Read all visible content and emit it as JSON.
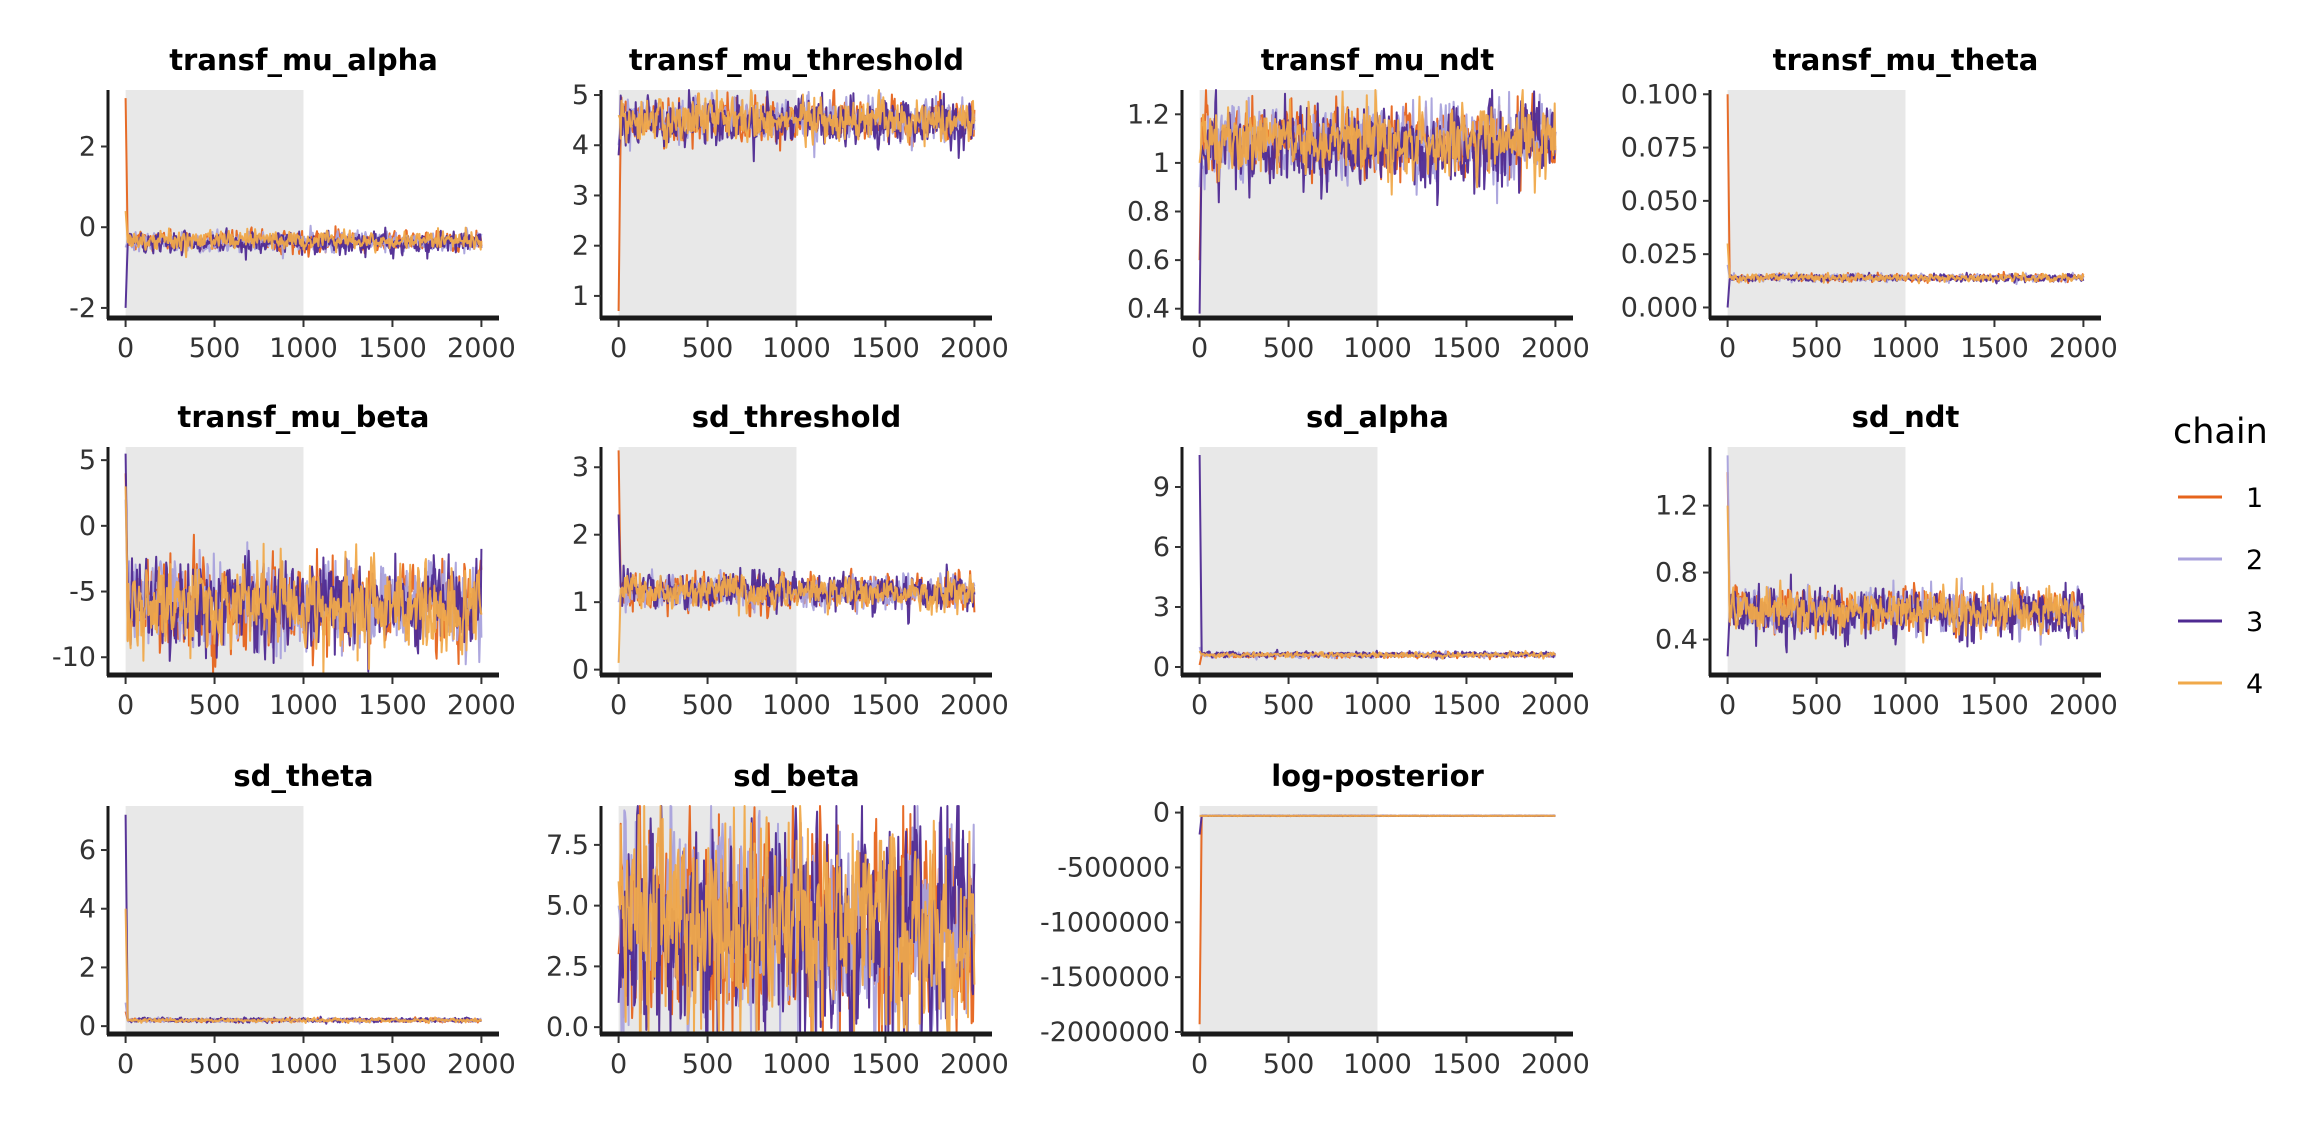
{
  "legend": {
    "title": "chain",
    "items": [
      {
        "label": "1",
        "color": "#E6641C"
      },
      {
        "label": "2",
        "color": "#A9A2DC"
      },
      {
        "label": "3",
        "color": "#4F2A92"
      },
      {
        "label": "4",
        "color": "#F0A94A"
      }
    ]
  },
  "warmup_shading_color": "#E8E8E8",
  "chart_data": [
    {
      "type": "line",
      "title": "transf_mu_alpha",
      "xlim": [
        0,
        2000
      ],
      "ylim": [
        -2.2,
        3.4
      ],
      "xticks": [
        0,
        500,
        1000,
        1500,
        2000
      ],
      "yticks": [
        -2,
        0,
        2
      ],
      "warmup": [
        0,
        1000
      ],
      "series": [
        {
          "name": "1",
          "initial": 3.2,
          "level": -0.35,
          "spread": 0.12
        },
        {
          "name": "2",
          "initial": -0.5,
          "level": -0.35,
          "spread": 0.12
        },
        {
          "name": "3",
          "initial": -2.0,
          "level": -0.38,
          "spread": 0.13
        },
        {
          "name": "4",
          "initial": 0.4,
          "level": -0.33,
          "spread": 0.11
        }
      ]
    },
    {
      "type": "line",
      "title": "transf_mu_threshold",
      "xlim": [
        0,
        2000
      ],
      "ylim": [
        0.6,
        5.1
      ],
      "xticks": [
        0,
        500,
        1000,
        1500,
        2000
      ],
      "yticks": [
        1,
        2,
        3,
        4,
        5
      ],
      "warmup": [
        0,
        1000
      ],
      "series": [
        {
          "name": "1",
          "initial": 0.7,
          "level": 4.5,
          "spread": 0.2
        },
        {
          "name": "2",
          "initial": 4.0,
          "level": 4.5,
          "spread": 0.2
        },
        {
          "name": "3",
          "initial": 3.8,
          "level": 4.45,
          "spread": 0.22
        },
        {
          "name": "4",
          "initial": 4.6,
          "level": 4.5,
          "spread": 0.2
        }
      ]
    },
    {
      "type": "line",
      "title": "transf_mu_ndt",
      "xlim": [
        0,
        2000
      ],
      "ylim": [
        0.37,
        1.3
      ],
      "xticks": [
        0,
        500,
        1000,
        1500,
        2000
      ],
      "yticks": [
        0.4,
        0.6,
        0.8,
        1.0,
        1.2
      ],
      "warmup": [
        0,
        1000
      ],
      "series": [
        {
          "name": "1",
          "initial": 0.6,
          "level": 1.09,
          "spread": 0.07
        },
        {
          "name": "2",
          "initial": 0.9,
          "level": 1.09,
          "spread": 0.07
        },
        {
          "name": "3",
          "initial": 0.38,
          "level": 1.08,
          "spread": 0.08
        },
        {
          "name": "4",
          "initial": 1.0,
          "level": 1.09,
          "spread": 0.07
        }
      ]
    },
    {
      "type": "line",
      "title": "transf_mu_theta",
      "xlim": [
        0,
        2000
      ],
      "ylim": [
        -0.004,
        0.102
      ],
      "xticks": [
        0,
        500,
        1000,
        1500,
        2000
      ],
      "yticks": [
        0.0,
        0.025,
        0.05,
        0.075,
        0.1
      ],
      "yticklabels": [
        "0.000",
        "0.025",
        "0.050",
        "0.075",
        "0.100"
      ],
      "warmup": [
        0,
        1000
      ],
      "series": [
        {
          "name": "1",
          "initial": 0.1,
          "level": 0.014,
          "spread": 0.0008
        },
        {
          "name": "2",
          "initial": 0.02,
          "level": 0.014,
          "spread": 0.0008
        },
        {
          "name": "3",
          "initial": 0.0,
          "level": 0.0138,
          "spread": 0.0008
        },
        {
          "name": "4",
          "initial": 0.03,
          "level": 0.014,
          "spread": 0.0008
        }
      ]
    },
    {
      "type": "line",
      "title": "transf_mu_beta",
      "xlim": [
        0,
        2000
      ],
      "ylim": [
        -11.2,
        6
      ],
      "xticks": [
        0,
        500,
        1000,
        1500,
        2000
      ],
      "yticks": [
        -10,
        -5,
        0,
        5
      ],
      "warmup": [
        0,
        1000
      ],
      "series": [
        {
          "name": "1",
          "initial": 4.0,
          "level": -6.0,
          "spread": 1.6
        },
        {
          "name": "2",
          "initial": 2.0,
          "level": -6.0,
          "spread": 1.6
        },
        {
          "name": "3",
          "initial": 5.5,
          "level": -6.0,
          "spread": 1.7
        },
        {
          "name": "4",
          "initial": 3.0,
          "level": -6.0,
          "spread": 1.6
        }
      ]
    },
    {
      "type": "line",
      "title": "sd_threshold",
      "xlim": [
        0,
        2000
      ],
      "ylim": [
        -0.05,
        3.3
      ],
      "xticks": [
        0,
        500,
        1000,
        1500,
        2000
      ],
      "yticks": [
        0,
        1,
        2,
        3
      ],
      "warmup": [
        0,
        1000
      ],
      "series": [
        {
          "name": "1",
          "initial": 3.25,
          "level": 1.15,
          "spread": 0.12
        },
        {
          "name": "2",
          "initial": 1.0,
          "level": 1.15,
          "spread": 0.12
        },
        {
          "name": "3",
          "initial": 2.3,
          "level": 1.17,
          "spread": 0.13
        },
        {
          "name": "4",
          "initial": 0.1,
          "level": 1.15,
          "spread": 0.12
        }
      ]
    },
    {
      "type": "line",
      "title": "sd_alpha",
      "xlim": [
        0,
        2000
      ],
      "ylim": [
        -0.3,
        11
      ],
      "xticks": [
        0,
        500,
        1000,
        1500,
        2000
      ],
      "yticks": [
        0,
        3,
        6,
        9
      ],
      "warmup": [
        0,
        1000
      ],
      "series": [
        {
          "name": "1",
          "initial": 0.1,
          "level": 0.6,
          "spread": 0.06
        },
        {
          "name": "2",
          "initial": 1.0,
          "level": 0.6,
          "spread": 0.06
        },
        {
          "name": "3",
          "initial": 10.6,
          "level": 0.62,
          "spread": 0.07
        },
        {
          "name": "4",
          "initial": 0.8,
          "level": 0.6,
          "spread": 0.06
        }
      ]
    },
    {
      "type": "line",
      "title": "sd_ndt",
      "xlim": [
        0,
        2000
      ],
      "ylim": [
        0.2,
        1.55
      ],
      "xticks": [
        0,
        500,
        1000,
        1500,
        2000
      ],
      "yticks": [
        0.4,
        0.8,
        1.2
      ],
      "warmup": [
        0,
        1000
      ],
      "series": [
        {
          "name": "1",
          "initial": 1.4,
          "level": 0.57,
          "spread": 0.06
        },
        {
          "name": "2",
          "initial": 1.5,
          "level": 0.57,
          "spread": 0.06
        },
        {
          "name": "3",
          "initial": 0.3,
          "level": 0.56,
          "spread": 0.07
        },
        {
          "name": "4",
          "initial": 1.2,
          "level": 0.57,
          "spread": 0.06
        }
      ]
    },
    {
      "type": "line",
      "title": "sd_theta",
      "xlim": [
        0,
        2000
      ],
      "ylim": [
        -0.2,
        7.5
      ],
      "xticks": [
        0,
        500,
        1000,
        1500,
        2000
      ],
      "yticks": [
        0,
        2,
        4,
        6
      ],
      "warmup": [
        0,
        1000
      ],
      "series": [
        {
          "name": "1",
          "initial": 0.5,
          "level": 0.2,
          "spread": 0.03
        },
        {
          "name": "2",
          "initial": 0.8,
          "level": 0.2,
          "spread": 0.03
        },
        {
          "name": "3",
          "initial": 7.2,
          "level": 0.21,
          "spread": 0.035
        },
        {
          "name": "4",
          "initial": 4.0,
          "level": 0.2,
          "spread": 0.03
        }
      ]
    },
    {
      "type": "line",
      "title": "sd_beta",
      "xlim": [
        0,
        2000
      ],
      "ylim": [
        -0.2,
        9.1
      ],
      "xticks": [
        0,
        500,
        1000,
        1500,
        2000
      ],
      "yticks": [
        0.0,
        2.5,
        5.0,
        7.5
      ],
      "yticklabels": [
        "0.0",
        "2.5",
        "5.0",
        "7.5"
      ],
      "warmup": [
        0,
        1000
      ],
      "series": [
        {
          "name": "1",
          "initial": 3.0,
          "level": 4.2,
          "spread": 2.1
        },
        {
          "name": "2",
          "initial": 5.0,
          "level": 4.2,
          "spread": 2.1
        },
        {
          "name": "3",
          "initial": 1.0,
          "level": 4.0,
          "spread": 2.3
        },
        {
          "name": "4",
          "initial": 6.0,
          "level": 4.3,
          "spread": 2.1
        }
      ]
    },
    {
      "type": "line",
      "title": "log-posterior",
      "xlim": [
        0,
        2000
      ],
      "ylim": [
        -2000000,
        60000
      ],
      "xticks": [
        0,
        500,
        1000,
        1500,
        2000
      ],
      "yticks": [
        0,
        -500000,
        -1000000,
        -1500000,
        -2000000
      ],
      "yticklabels": [
        "0",
        "-500000",
        "-1000000",
        "-1500000",
        "-2000000"
      ],
      "warmup": [
        0,
        1000
      ],
      "series": [
        {
          "name": "1",
          "initial": -1930000,
          "level": -30000,
          "spread": 800
        },
        {
          "name": "2",
          "initial": -30000,
          "level": -30000,
          "spread": 800
        },
        {
          "name": "3",
          "initial": -200000,
          "level": -30000,
          "spread": 800
        },
        {
          "name": "4",
          "initial": -30000,
          "level": -30000,
          "spread": 800
        }
      ]
    }
  ]
}
